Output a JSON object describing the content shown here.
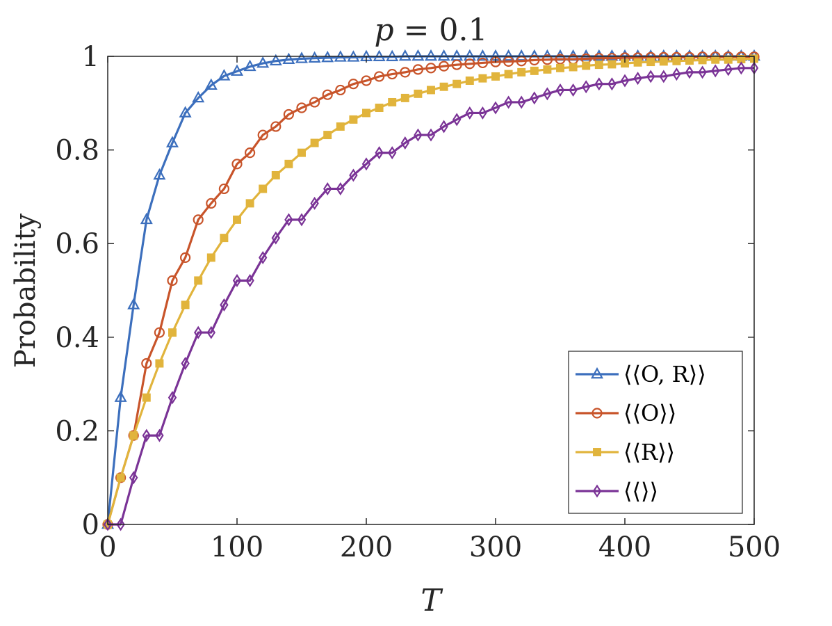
{
  "chart_data": {
    "type": "line",
    "title": "p = 0.1",
    "xlabel": "T",
    "ylabel": "Probability",
    "xlim": [
      0,
      500
    ],
    "ylim": [
      0,
      1
    ],
    "xticks": [
      0,
      100,
      200,
      300,
      400,
      500
    ],
    "yticks": [
      0,
      0.2,
      0.4,
      0.6,
      0.8,
      1
    ],
    "xtick_labels": [
      "0",
      "100",
      "200",
      "300",
      "400",
      "500"
    ],
    "ytick_labels": [
      "0",
      "0.2",
      "0.4",
      "0.6",
      "0.8",
      "1"
    ],
    "grid": false,
    "legend_position": "bottom-right",
    "x": [
      0,
      10,
      20,
      30,
      40,
      50,
      60,
      70,
      80,
      90,
      100,
      110,
      120,
      130,
      140,
      150,
      160,
      170,
      180,
      190,
      200,
      210,
      220,
      230,
      240,
      250,
      260,
      270,
      280,
      290,
      300,
      310,
      320,
      330,
      340,
      350,
      360,
      370,
      380,
      390,
      400,
      410,
      420,
      430,
      440,
      450,
      460,
      470,
      480,
      490,
      500
    ],
    "series": [
      {
        "name": "⟨⟨O, R⟩⟩",
        "color": "#3c6fbd",
        "marker": "triangle",
        "values": [
          0,
          0.271,
          0.469,
          0.651,
          0.746,
          0.815,
          0.879,
          0.911,
          0.938,
          0.958,
          0.968,
          0.978,
          0.985,
          0.99,
          0.993,
          0.995,
          0.996,
          0.997,
          0.998,
          0.998,
          0.999,
          0.999,
          0.999,
          1,
          1,
          1,
          1,
          1,
          1,
          1,
          1,
          1,
          1,
          1,
          1,
          1,
          1,
          1,
          1,
          1,
          1,
          1,
          1,
          1,
          1,
          1,
          1,
          1,
          1,
          1,
          1
        ]
      },
      {
        "name": "⟨⟨O⟩⟩",
        "color": "#c8542a",
        "marker": "circle",
        "values": [
          0,
          0.1,
          0.19,
          0.344,
          0.41,
          0.521,
          0.57,
          0.651,
          0.686,
          0.717,
          0.77,
          0.794,
          0.832,
          0.85,
          0.876,
          0.89,
          0.902,
          0.918,
          0.928,
          0.941,
          0.948,
          0.957,
          0.962,
          0.966,
          0.972,
          0.975,
          0.979,
          0.982,
          0.984,
          0.986,
          0.988,
          0.989,
          0.99,
          0.992,
          0.993,
          0.994,
          0.994,
          0.995,
          0.996,
          0.996,
          0.997,
          0.997,
          0.998,
          0.998,
          0.998,
          0.998,
          0.999,
          0.999,
          0.999,
          0.999,
          0.999
        ]
      },
      {
        "name": "⟨⟨R⟩⟩",
        "color": "#e1b43c",
        "marker": "square",
        "values": [
          0,
          0.1,
          0.19,
          0.271,
          0.344,
          0.41,
          0.469,
          0.521,
          0.57,
          0.612,
          0.651,
          0.686,
          0.717,
          0.746,
          0.77,
          0.794,
          0.815,
          0.832,
          0.85,
          0.865,
          0.879,
          0.89,
          0.902,
          0.911,
          0.92,
          0.928,
          0.935,
          0.941,
          0.948,
          0.953,
          0.957,
          0.962,
          0.966,
          0.969,
          0.972,
          0.975,
          0.977,
          0.98,
          0.982,
          0.983,
          0.985,
          0.987,
          0.988,
          0.989,
          0.99,
          0.991,
          0.992,
          0.993,
          0.993,
          0.994,
          0.995
        ]
      },
      {
        "name": "⟨⟨⟩⟩",
        "color": "#7a3396",
        "marker": "diamond",
        "values": [
          0,
          0,
          0.1,
          0.19,
          0.19,
          0.271,
          0.344,
          0.41,
          0.41,
          0.469,
          0.521,
          0.521,
          0.57,
          0.612,
          0.651,
          0.651,
          0.686,
          0.717,
          0.717,
          0.746,
          0.77,
          0.794,
          0.794,
          0.815,
          0.832,
          0.832,
          0.85,
          0.865,
          0.879,
          0.879,
          0.89,
          0.902,
          0.902,
          0.911,
          0.92,
          0.928,
          0.928,
          0.935,
          0.941,
          0.941,
          0.948,
          0.953,
          0.957,
          0.957,
          0.962,
          0.966,
          0.966,
          0.969,
          0.972,
          0.975,
          0.975
        ]
      }
    ]
  }
}
